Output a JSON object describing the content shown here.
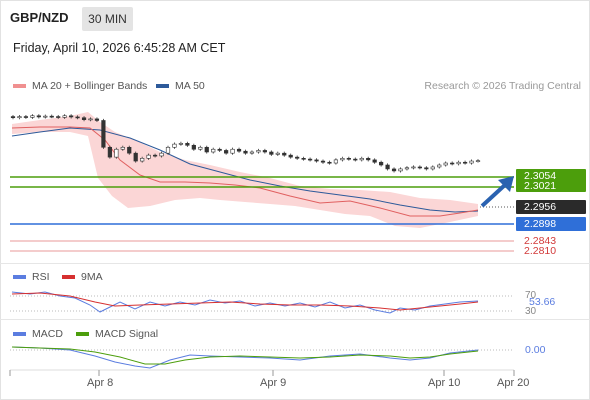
{
  "header": {
    "pair": "GBP/NZD",
    "timeframe": "30 MIN",
    "datetime": "Friday, April 10, 2026 6:45:28 AM CET"
  },
  "legend": {
    "ma20": "MA 20 + Bollinger Bands",
    "ma50": "MA 50",
    "credit": "Research © 2026 Trading Central"
  },
  "price_levels": {
    "resistance_top": "2.3054",
    "resistance_2": "2.3021",
    "current": "2.2956",
    "support_1": "2.2898",
    "support_2": "2.2843",
    "support_3": "2.2810"
  },
  "rsi": {
    "label": "RSI",
    "ma_label": "9MA",
    "value": "53.66",
    "upper": "70",
    "lower": "30"
  },
  "macd": {
    "label": "MACD",
    "signal_label": "MACD Signal",
    "value": "0.00"
  },
  "x_axis": [
    "Apr 8",
    "Apr 9",
    "Apr 10",
    "Apr 20"
  ],
  "colors": {
    "green_level": "#4c9e0c",
    "blue_level": "#2f6fd8",
    "red_level": "#d23a3a",
    "current_tag": "#2a2a2a",
    "ma20": "#e06060",
    "bollinger": "#fbd3d3",
    "ma50": "#2d5a9a",
    "rsi": "#5b7de0",
    "rsi_ma": "#d63030",
    "macd": "#5b7de0",
    "macd_signal": "#4c9e0c"
  },
  "chart_data": {
    "type": "candlestick",
    "symbol": "GBP/NZD",
    "interval": "30 MIN",
    "x_ticks": [
      "Apr 8",
      "Apr 9",
      "Apr 10",
      "Apr 20"
    ],
    "y_range": [
      2.278,
      2.311
    ],
    "current_price": 2.2956,
    "closes": [
      2.3065,
      2.3068,
      2.3066,
      2.307,
      2.3067,
      2.3069,
      2.3068,
      2.3066,
      2.307,
      2.3067,
      2.3065,
      2.306,
      2.3062,
      2.3058,
      2.299,
      2.2965,
      2.2985,
      2.299,
      2.2975,
      2.2955,
      2.2962,
      2.297,
      2.2968,
      2.2975,
      2.299,
      2.2998,
      2.3,
      2.2995,
      2.2985,
      2.299,
      2.2978,
      2.2985,
      2.2982,
      2.2975,
      2.2985,
      2.298,
      2.2975,
      2.2978,
      2.2982,
      2.2978,
      2.2972,
      2.2975,
      2.297,
      2.2965,
      2.2962,
      2.296,
      2.2958,
      2.2955,
      2.2952,
      2.295,
      2.2958,
      2.2962,
      2.296,
      2.2958,
      2.2962,
      2.2958,
      2.2952,
      2.2945,
      2.2935,
      2.293,
      2.2935,
      2.2938,
      2.294,
      2.2938,
      2.2935,
      2.294,
      2.2945,
      2.295,
      2.2948,
      2.2952,
      2.295,
      2.2955,
      2.2956
    ],
    "levels": {
      "resistance": [
        2.3054,
        2.3021
      ],
      "support": [
        2.2898,
        2.2843,
        2.281
      ]
    },
    "rsi": {
      "value": 53.66,
      "upper": 70,
      "lower": 30
    },
    "macd": {
      "value": 0.0
    }
  }
}
